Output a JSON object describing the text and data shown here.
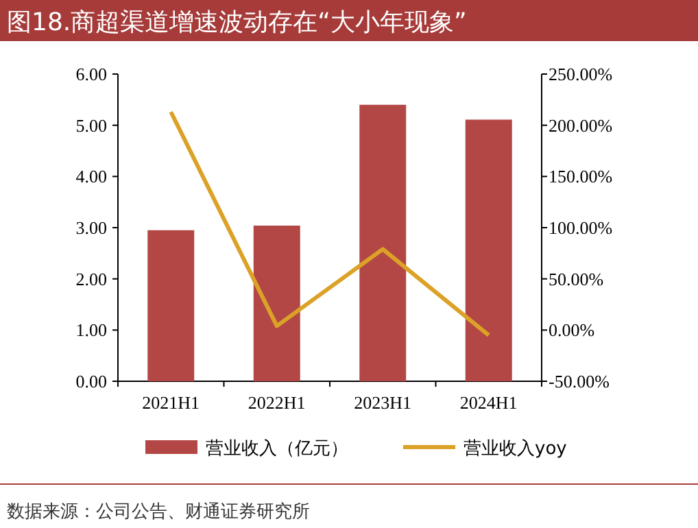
{
  "chart_data": {
    "type": "bar",
    "title": "图18.商超渠道增速波动存在“大小年现象”",
    "categories": [
      "2021H1",
      "2022H1",
      "2023H1",
      "2024H1"
    ],
    "series": [
      {
        "name": "营业收入（亿元）",
        "color": "#b34745",
        "values": [
          2.95,
          3.04,
          5.4,
          5.11
        ]
      },
      {
        "name": "营业收入yoy",
        "type": "line",
        "axis": "y2",
        "color": "#dca227",
        "values": [
          213,
          4,
          79,
          -5
        ]
      }
    ],
    "ylim": [
      0,
      6
    ],
    "yticks": [
      {
        "value": 0,
        "label": "0.00"
      },
      {
        "value": 1,
        "label": "1.00"
      },
      {
        "value": 2,
        "label": "2.00"
      },
      {
        "value": 3,
        "label": "3.00"
      },
      {
        "value": 4,
        "label": "4.00"
      },
      {
        "value": 5,
        "label": "5.00"
      },
      {
        "value": 6,
        "label": "6.00"
      }
    ],
    "y2lim": [
      -50,
      250
    ],
    "y2ticks": [
      {
        "value": -50,
        "label": "-50.00%"
      },
      {
        "value": 0,
        "label": "0.00%"
      },
      {
        "value": 50,
        "label": "50.00%"
      },
      {
        "value": 100,
        "label": "100.00%"
      },
      {
        "value": 150,
        "label": "150.00%"
      },
      {
        "value": 200,
        "label": "200.00%"
      },
      {
        "value": 250,
        "label": "250.00%"
      }
    ],
    "legend": "bottom",
    "annotations": [
      "数据来源：公司公告、财通证券研究所"
    ]
  }
}
